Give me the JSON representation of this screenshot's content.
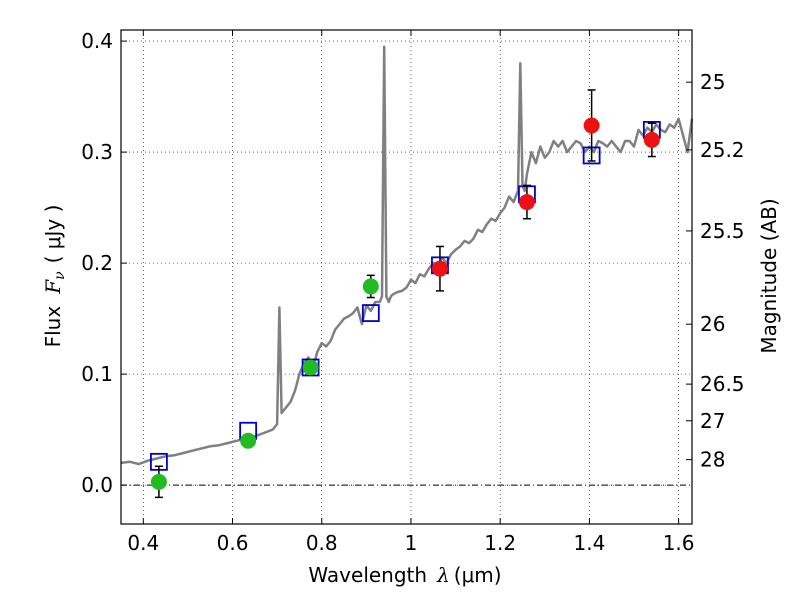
{
  "chart_data": {
    "type": "scatter",
    "title": "",
    "xlabel": {
      "text": "Wavelength",
      "symbol": "λ",
      "unit": "(μm)"
    },
    "ylabel": {
      "text": "Flux",
      "symbol": "F",
      "subscript": "ν",
      "unit": "( μJy )"
    },
    "ylabel_right": "Magnitude (AB)",
    "xlim": [
      0.35,
      1.63
    ],
    "ylim": [
      -0.035,
      0.41
    ],
    "grid": true,
    "x_ticks": [
      0.4,
      0.6,
      0.8,
      1.0,
      1.2,
      1.4,
      1.6
    ],
    "x_tick_labels": [
      "0.4",
      "0.6",
      "0.8",
      "1",
      "1.2",
      "1.4",
      "1.6"
    ],
    "y_ticks": [
      0.0,
      0.1,
      0.2,
      0.3,
      0.4
    ],
    "y_tick_labels": [
      "0.0",
      "0.1",
      "0.2",
      "0.3",
      "0.4"
    ],
    "right_axis_ticks": [
      {
        "label": "25",
        "flux": 0.363
      },
      {
        "label": "25.2",
        "flux": 0.302
      },
      {
        "label": "25.5",
        "flux": 0.229
      },
      {
        "label": "26",
        "flux": 0.145
      },
      {
        "label": "26.5",
        "flux": 0.091
      },
      {
        "label": "27",
        "flux": 0.058
      },
      {
        "label": "28",
        "flux": 0.023
      }
    ],
    "zero_line": 0.0,
    "colors": {
      "spectrum": "#808080",
      "model": "#0000cc",
      "green": "#22bb22",
      "red": "#ee1111",
      "errorbar": "#000000"
    },
    "spectrum": {
      "x": [
        0.35,
        0.37,
        0.39,
        0.41,
        0.43,
        0.45,
        0.47,
        0.49,
        0.51,
        0.53,
        0.55,
        0.57,
        0.59,
        0.61,
        0.63,
        0.65,
        0.67,
        0.69,
        0.7,
        0.705,
        0.71,
        0.72,
        0.73,
        0.74,
        0.75,
        0.76,
        0.77,
        0.78,
        0.79,
        0.8,
        0.81,
        0.82,
        0.83,
        0.84,
        0.85,
        0.86,
        0.87,
        0.88,
        0.89,
        0.9,
        0.91,
        0.92,
        0.93,
        0.935,
        0.94,
        0.945,
        0.95,
        0.955,
        0.96,
        0.97,
        0.98,
        0.99,
        1.0,
        1.01,
        1.02,
        1.03,
        1.04,
        1.05,
        1.06,
        1.07,
        1.08,
        1.09,
        1.1,
        1.11,
        1.12,
        1.13,
        1.14,
        1.15,
        1.16,
        1.17,
        1.18,
        1.19,
        1.2,
        1.21,
        1.22,
        1.23,
        1.24,
        1.245,
        1.25,
        1.255,
        1.26,
        1.27,
        1.28,
        1.29,
        1.3,
        1.31,
        1.32,
        1.33,
        1.34,
        1.35,
        1.36,
        1.37,
        1.38,
        1.39,
        1.4,
        1.41,
        1.42,
        1.43,
        1.44,
        1.45,
        1.46,
        1.47,
        1.48,
        1.49,
        1.5,
        1.51,
        1.52,
        1.53,
        1.54,
        1.55,
        1.56,
        1.57,
        1.58,
        1.59,
        1.6,
        1.61,
        1.62,
        1.63
      ],
      "y": [
        0.02,
        0.021,
        0.019,
        0.022,
        0.024,
        0.026,
        0.027,
        0.029,
        0.031,
        0.033,
        0.035,
        0.036,
        0.038,
        0.04,
        0.042,
        0.044,
        0.047,
        0.05,
        0.055,
        0.16,
        0.065,
        0.07,
        0.075,
        0.085,
        0.1,
        0.11,
        0.115,
        0.105,
        0.12,
        0.128,
        0.125,
        0.13,
        0.14,
        0.145,
        0.15,
        0.152,
        0.155,
        0.16,
        0.145,
        0.162,
        0.157,
        0.165,
        0.165,
        0.17,
        0.395,
        0.17,
        0.165,
        0.17,
        0.172,
        0.174,
        0.175,
        0.178,
        0.185,
        0.182,
        0.19,
        0.188,
        0.195,
        0.2,
        0.198,
        0.205,
        0.2,
        0.208,
        0.212,
        0.215,
        0.22,
        0.218,
        0.222,
        0.23,
        0.228,
        0.235,
        0.24,
        0.238,
        0.245,
        0.25,
        0.26,
        0.255,
        0.265,
        0.38,
        0.27,
        0.265,
        0.28,
        0.3,
        0.29,
        0.305,
        0.295,
        0.3,
        0.31,
        0.305,
        0.31,
        0.3,
        0.305,
        0.31,
        0.308,
        0.3,
        0.305,
        0.3,
        0.31,
        0.308,
        0.305,
        0.31,
        0.305,
        0.3,
        0.31,
        0.31,
        0.305,
        0.32,
        0.315,
        0.322,
        0.318,
        0.325,
        0.32,
        0.318,
        0.325,
        0.322,
        0.33,
        0.315,
        0.3,
        0.33
      ]
    },
    "series": [
      {
        "kind": "model",
        "x": [
          0.435,
          0.635,
          0.775,
          0.91,
          1.065,
          1.26,
          1.405,
          1.54
        ],
        "y": [
          0.021,
          0.049,
          0.106,
          0.155,
          0.198,
          0.262,
          0.297,
          0.32
        ]
      },
      {
        "kind": "green",
        "x": [
          0.435,
          0.635,
          0.775,
          0.91
        ],
        "y": [
          0.003,
          0.04,
          0.106,
          0.179
        ],
        "err": [
          0.014,
          0.005,
          0.007,
          0.01
        ]
      },
      {
        "kind": "red",
        "x": [
          1.065,
          1.26,
          1.405,
          1.54
        ],
        "y": [
          0.195,
          0.255,
          0.324,
          0.311
        ],
        "err": [
          0.02,
          0.015,
          0.032,
          0.015
        ]
      }
    ]
  }
}
